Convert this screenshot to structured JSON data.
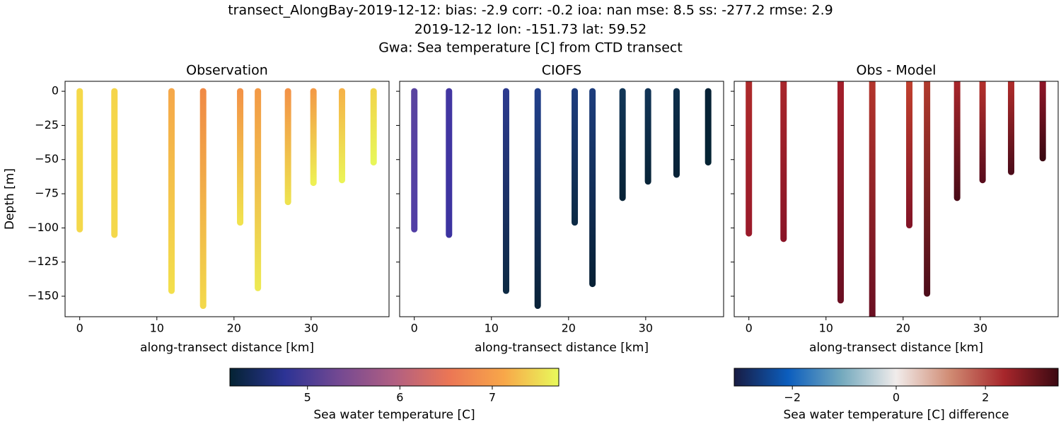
{
  "title": [
    "transect_AlongBay-2019-12-12: bias: -2.9  corr: -0.2  ioa: nan  mse: 8.5  ss: -277.2  rmse: 2.9",
    "2019-12-12 lon: -151.73 lat: 59.52",
    "Gwa: Sea temperature [C] from CTD transect"
  ],
  "chart_data": [
    {
      "type": "profile",
      "title": "Observation",
      "xlabel": "along-transect distance [km]",
      "ylabel": "Depth [m]",
      "xlim": [
        -1.9,
        40.1
      ],
      "ylim": [
        -165,
        7.3
      ],
      "xticks": [
        0,
        10,
        20,
        30
      ],
      "yticks": [
        0,
        {
          "value": -25,
          "label": "−25"
        },
        {
          "value": -50,
          "label": "−50"
        },
        {
          "value": -75,
          "label": "−75"
        },
        {
          "value": -100,
          "label": "−100"
        },
        {
          "value": -125,
          "label": "−125"
        },
        {
          "value": -150,
          "label": "−150"
        }
      ],
      "ytick_labels": true,
      "casts": [
        {
          "x": 0,
          "depth": [
            0,
            -101
          ],
          "colors": [
            "#f5d94a",
            "#f4d84b"
          ]
        },
        {
          "x": 4.5,
          "depth": [
            0,
            -105
          ],
          "colors": [
            "#f5d54a",
            "#f4d84b"
          ]
        },
        {
          "x": 11.9,
          "depth": [
            0,
            -146
          ],
          "colors": [
            "#f5a84a",
            "#f3df4c"
          ]
        },
        {
          "x": 16,
          "depth": [
            0,
            -157
          ],
          "colors": [
            "#f08a45",
            "#f3d84b"
          ]
        },
        {
          "x": 20.8,
          "depth": [
            0,
            -96
          ],
          "colors": [
            "#f39347",
            "#f1e24e"
          ]
        },
        {
          "x": 23.1,
          "depth": [
            0,
            -144
          ],
          "colors": [
            "#f39a46",
            "#ede953"
          ]
        },
        {
          "x": 27,
          "depth": [
            0,
            -81
          ],
          "colors": [
            "#f39347",
            "#eee24f"
          ]
        },
        {
          "x": 30.3,
          "depth": [
            0,
            -67
          ],
          "colors": [
            "#f39b46",
            "#eef054"
          ]
        },
        {
          "x": 34,
          "depth": [
            0,
            -65
          ],
          "colors": [
            "#f5b348",
            "#ebf357"
          ]
        },
        {
          "x": 38.1,
          "depth": [
            0,
            -52
          ],
          "colors": [
            "#f1d54a",
            "#e8f659"
          ]
        }
      ]
    },
    {
      "type": "profile",
      "title": "CIOFS",
      "xlabel": "along-transect distance [km]",
      "xlim": [
        -1.9,
        40.1
      ],
      "ylim": [
        -165,
        7.3
      ],
      "xticks": [
        0,
        10,
        20,
        30
      ],
      "yticks": [
        0,
        -25,
        -50,
        -75,
        -100,
        -125,
        -150
      ],
      "ytick_labels": false,
      "casts": [
        {
          "x": 0,
          "depth": [
            0,
            -101
          ],
          "colors": [
            "#5a44a0",
            "#513ea5"
          ]
        },
        {
          "x": 4.5,
          "depth": [
            0,
            -105
          ],
          "colors": [
            "#4336a2",
            "#3c33a0"
          ]
        },
        {
          "x": 11.9,
          "depth": [
            0,
            -146
          ],
          "colors": [
            "#2c3a8e",
            "#0d2a44"
          ]
        },
        {
          "x": 16,
          "depth": [
            0,
            -157
          ],
          "colors": [
            "#213f8b",
            "#092238"
          ]
        },
        {
          "x": 20.8,
          "depth": [
            0,
            -96
          ],
          "colors": [
            "#1d3c7e",
            "#0c2a45"
          ]
        },
        {
          "x": 23.1,
          "depth": [
            0,
            -141
          ],
          "colors": [
            "#1d3d7c",
            "#072035"
          ]
        },
        {
          "x": 27,
          "depth": [
            0,
            -78
          ],
          "colors": [
            "#123657",
            "#072236"
          ]
        },
        {
          "x": 30.3,
          "depth": [
            0,
            -66
          ],
          "colors": [
            "#113456",
            "#082438"
          ]
        },
        {
          "x": 34,
          "depth": [
            0,
            -61
          ],
          "colors": [
            "#0d2e4a",
            "#072237"
          ]
        },
        {
          "x": 38.1,
          "depth": [
            0,
            -52
          ],
          "colors": [
            "#072236",
            "#042333"
          ]
        }
      ]
    },
    {
      "type": "profile",
      "title": "Obs - Model",
      "xlabel": "along-transect distance [km]",
      "xlim": [
        -1.9,
        40.1
      ],
      "ylim": [
        -165,
        7.3
      ],
      "xticks": [
        0,
        10,
        20,
        30
      ],
      "yticks": [
        0,
        -25,
        -50,
        -75,
        -100,
        -125,
        -150
      ],
      "ytick_labels": false,
      "casts": [
        {
          "x": 0,
          "depth": [
            7.3,
            -104
          ],
          "colors": [
            "#ad2a2b",
            "#9a1a2a"
          ]
        },
        {
          "x": 4.5,
          "depth": [
            7.3,
            -108
          ],
          "colors": [
            "#a8262b",
            "#8a1427"
          ]
        },
        {
          "x": 11.9,
          "depth": [
            7.3,
            -153
          ],
          "colors": [
            "#a41f2b",
            "#6a0f22"
          ]
        },
        {
          "x": 16,
          "depth": [
            7.3,
            -165
          ],
          "colors": [
            "#b3352c",
            "#6a0f22"
          ]
        },
        {
          "x": 20.8,
          "depth": [
            7.3,
            -98
          ],
          "colors": [
            "#c0402e",
            "#821326"
          ]
        },
        {
          "x": 23.1,
          "depth": [
            7.3,
            -148
          ],
          "colors": [
            "#b03a2d",
            "#4d0d1a"
          ]
        },
        {
          "x": 27,
          "depth": [
            7.3,
            -78
          ],
          "colors": [
            "#a8262b",
            "#4a0b18"
          ]
        },
        {
          "x": 30.3,
          "depth": [
            7.3,
            -65
          ],
          "colors": [
            "#b4302c",
            "#5a0d1d"
          ]
        },
        {
          "x": 34,
          "depth": [
            7.3,
            -59
          ],
          "colors": [
            "#b02c2b",
            "#4d0c1a"
          ]
        },
        {
          "x": 38.1,
          "depth": [
            7.3,
            -49
          ],
          "colors": [
            "#8f1628",
            "#3c0912"
          ]
        }
      ]
    }
  ],
  "colorbars": [
    {
      "label": "Sea water temperature [C]",
      "clim": [
        4.16,
        7.72
      ],
      "ticks": [
        5,
        6,
        7
      ],
      "colors": [
        "#042333",
        "#2c3395",
        "#744992",
        "#b15f82",
        "#eb7655",
        "#f8a749",
        "#e8fa5b"
      ]
    },
    {
      "label": "Sea water temperature [C] difference",
      "clim": [
        -3.12,
        3.63
      ],
      "center": 0,
      "ticks": [
        {
          "value": -2,
          "label": "−2"
        },
        0,
        2
      ],
      "colors": [
        "#181c43",
        "#0c5ebe",
        "#75aabe",
        "#f1eceb",
        "#d08b73",
        "#a7262b",
        "#3c0912"
      ]
    }
  ]
}
